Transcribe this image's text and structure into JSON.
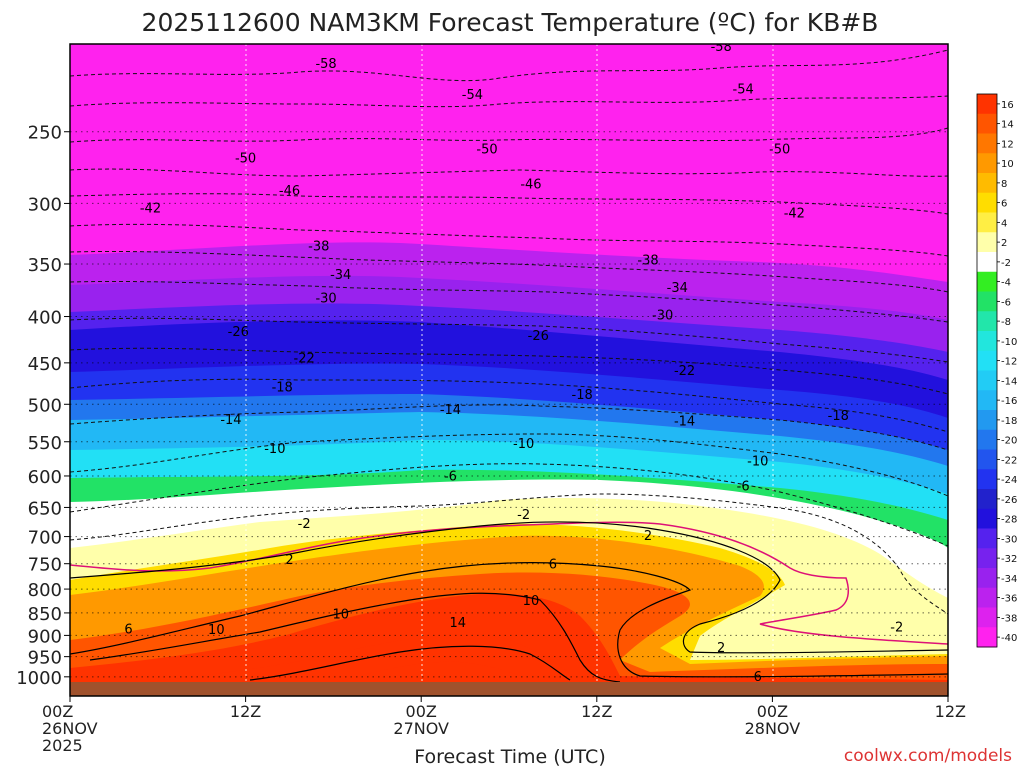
{
  "chart_data": {
    "type": "heatmap",
    "title": "2025112600 NAM3KM Forecast Temperature (ºC) for KB#B",
    "xlabel": "Forecast Time (UTC)",
    "ylabel": "",
    "x_range_hours": [
      0,
      60
    ],
    "y_range_hpa": [
      200,
      1050
    ],
    "x_ticks": [
      {
        "hour": 0,
        "lines": [
          "00Z",
          "26NOV",
          "2025"
        ]
      },
      {
        "hour": 12,
        "lines": [
          "12Z"
        ]
      },
      {
        "hour": 24,
        "lines": [
          "00Z",
          "27NOV"
        ]
      },
      {
        "hour": 36,
        "lines": [
          "12Z"
        ]
      },
      {
        "hour": 48,
        "lines": [
          "00Z",
          "28NOV"
        ]
      },
      {
        "hour": 60,
        "lines": [
          "12Z"
        ]
      }
    ],
    "y_ticks": [
      250,
      300,
      350,
      400,
      450,
      500,
      550,
      600,
      650,
      700,
      750,
      800,
      850,
      900,
      950,
      1000
    ],
    "colorbar": {
      "labels": [
        "16",
        "14",
        "12",
        "10",
        "8",
        "6",
        "4",
        "2",
        "-2",
        "-4",
        "-6",
        "-8",
        "-10",
        "-12",
        "-14",
        "-16",
        "-18",
        "-20",
        "-22",
        "-24",
        "-26",
        "-28",
        "-30",
        "-32",
        "-34",
        "-36",
        "-38",
        "-40"
      ],
      "colors": [
        "#ff3300",
        "#ff5500",
        "#ff7700",
        "#ff9900",
        "#ffbb00",
        "#ffdd00",
        "#ffee44",
        "#ffffaa",
        "#ffffff",
        "#33ee22",
        "#22e266",
        "#22e6aa",
        "#22e6dd",
        "#22e0f5",
        "#22ccf5",
        "#22b8f5",
        "#2299f0",
        "#2277ee",
        "#2255ee",
        "#2233f0",
        "#2222cc",
        "#2211dd",
        "#5522ee",
        "#7722ee",
        "#9922ee",
        "#bb22ee",
        "#dd22ee",
        "#ff22ee"
      ]
    },
    "contour_labels": [
      {
        "text": "-58",
        "hour": 17.5,
        "hpa": 210
      },
      {
        "text": "-58",
        "hour": 44.5,
        "hpa": 201
      },
      {
        "text": "-54",
        "hour": 27.5,
        "hpa": 227
      },
      {
        "text": "-54",
        "hour": 46.0,
        "hpa": 224
      },
      {
        "text": "-50",
        "hour": 12.0,
        "hpa": 267
      },
      {
        "text": "-50",
        "hour": 28.5,
        "hpa": 261
      },
      {
        "text": "-50",
        "hour": 48.5,
        "hpa": 261
      },
      {
        "text": "-46",
        "hour": 15.0,
        "hpa": 290
      },
      {
        "text": "-46",
        "hour": 31.5,
        "hpa": 285
      },
      {
        "text": "-42",
        "hour": 5.5,
        "hpa": 303
      },
      {
        "text": "-42",
        "hour": 49.5,
        "hpa": 307
      },
      {
        "text": "-38",
        "hour": 17.0,
        "hpa": 334
      },
      {
        "text": "-38",
        "hour": 39.5,
        "hpa": 346
      },
      {
        "text": "-34",
        "hour": 18.5,
        "hpa": 359
      },
      {
        "text": "-34",
        "hour": 41.5,
        "hpa": 371
      },
      {
        "text": "-30",
        "hour": 17.5,
        "hpa": 381
      },
      {
        "text": "-30",
        "hour": 40.5,
        "hpa": 398
      },
      {
        "text": "-26",
        "hour": 11.5,
        "hpa": 415
      },
      {
        "text": "-26",
        "hour": 32.0,
        "hpa": 419
      },
      {
        "text": "-22",
        "hour": 16.0,
        "hpa": 444
      },
      {
        "text": "-22",
        "hour": 42.0,
        "hpa": 458
      },
      {
        "text": "-18",
        "hour": 14.5,
        "hpa": 478
      },
      {
        "text": "-18",
        "hour": 35.0,
        "hpa": 487
      },
      {
        "text": "-18",
        "hour": 52.5,
        "hpa": 514
      },
      {
        "text": "-14",
        "hour": 11.0,
        "hpa": 519
      },
      {
        "text": "-14",
        "hour": 26.0,
        "hpa": 506
      },
      {
        "text": "-14",
        "hour": 42.0,
        "hpa": 521
      },
      {
        "text": "-10",
        "hour": 14.0,
        "hpa": 559
      },
      {
        "text": "-10",
        "hour": 31.0,
        "hpa": 552
      },
      {
        "text": "-10",
        "hour": 47.0,
        "hpa": 577
      },
      {
        "text": "-6",
        "hour": 26.0,
        "hpa": 599
      },
      {
        "text": "-6",
        "hour": 46.0,
        "hpa": 615
      },
      {
        "text": "-2",
        "hour": 16.0,
        "hpa": 676
      },
      {
        "text": "-2",
        "hour": 31.0,
        "hpa": 661
      },
      {
        "text": "-2",
        "hour": 56.5,
        "hpa": 880
      },
      {
        "text": "2",
        "hour": 15.0,
        "hpa": 741
      },
      {
        "text": "2",
        "hour": 39.5,
        "hpa": 697
      },
      {
        "text": "2",
        "hour": 44.5,
        "hpa": 927
      },
      {
        "text": "6",
        "hour": 4.0,
        "hpa": 884
      },
      {
        "text": "6",
        "hour": 33.0,
        "hpa": 750
      },
      {
        "text": "6",
        "hour": 47.0,
        "hpa": 998
      },
      {
        "text": "10",
        "hour": 10.0,
        "hpa": 885
      },
      {
        "text": "10",
        "hour": 18.5,
        "hpa": 851
      },
      {
        "text": "10",
        "hour": 31.5,
        "hpa": 823
      },
      {
        "text": "14",
        "hour": 26.5,
        "hpa": 870
      }
    ]
  },
  "credit": "coolwx.com/models"
}
